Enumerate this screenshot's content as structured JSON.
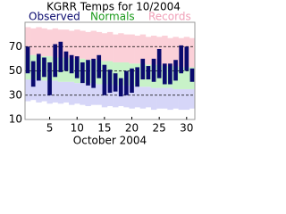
{
  "chart_data": {
    "type": "range_bar",
    "title": "KGRR Temps for 10/2004",
    "xlabel": "October 2004",
    "x": [
      1,
      2,
      3,
      4,
      5,
      6,
      7,
      8,
      9,
      10,
      11,
      12,
      13,
      14,
      15,
      16,
      17,
      18,
      19,
      20,
      21,
      22,
      23,
      24,
      25,
      26,
      27,
      28,
      29,
      30,
      31
    ],
    "xlim": [
      0.5,
      31.5
    ],
    "xticks": [
      5,
      10,
      15,
      20,
      25,
      30
    ],
    "ylim": [
      10,
      90
    ],
    "yticks": [
      10,
      30,
      50,
      70
    ],
    "grid": true,
    "series": [
      {
        "name": "Observed",
        "color": "#0a0a6e",
        "high": [
          70,
          58,
          64,
          61,
          57,
          72,
          74,
          66,
          63,
          62,
          57,
          59,
          60,
          63,
          55,
          51,
          48,
          44,
          50,
          52,
          53,
          60,
          54,
          60,
          68,
          56,
          56,
          59,
          71,
          70,
          52
        ],
        "low": [
          48,
          37,
          42,
          45,
          30,
          45,
          49,
          50,
          48,
          44,
          40,
          38,
          36,
          44,
          30,
          32,
          33,
          29,
          30,
          32,
          37,
          43,
          43,
          41,
          44,
          39,
          39,
          42,
          48,
          50,
          41
        ]
      },
      {
        "name": "Normals",
        "color": "#c8f2c8",
        "high": [
          63,
          63,
          62,
          62,
          62,
          61,
          61,
          61,
          60,
          60,
          60,
          59,
          59,
          59,
          58,
          58,
          57,
          57,
          57,
          56,
          56,
          56,
          55,
          55,
          55,
          54,
          54,
          54,
          53,
          53,
          53
        ],
        "low": [
          43,
          43,
          43,
          42,
          42,
          42,
          41,
          41,
          41,
          40,
          40,
          40,
          40,
          39,
          39,
          39,
          38,
          38,
          38,
          38,
          37,
          37,
          37,
          36,
          36,
          36,
          36,
          35,
          35,
          35,
          35
        ]
      },
      {
        "name": "Records",
        "color": "#fbd0d8",
        "low_color": "#d6d6f8",
        "high": [
          86,
          85,
          86,
          85,
          84,
          85,
          84,
          84,
          83,
          84,
          83,
          82,
          83,
          82,
          81,
          82,
          80,
          81,
          80,
          80,
          79,
          80,
          78,
          79,
          78,
          79,
          77,
          78,
          77,
          78,
          77
        ],
        "low": [
          25,
          26,
          24,
          25,
          23,
          24,
          23,
          24,
          22,
          23,
          22,
          21,
          22,
          22,
          20,
          21,
          20,
          21,
          20,
          19,
          20,
          19,
          20,
          18,
          19,
          19,
          18,
          19,
          18,
          18,
          19
        ]
      }
    ]
  }
}
